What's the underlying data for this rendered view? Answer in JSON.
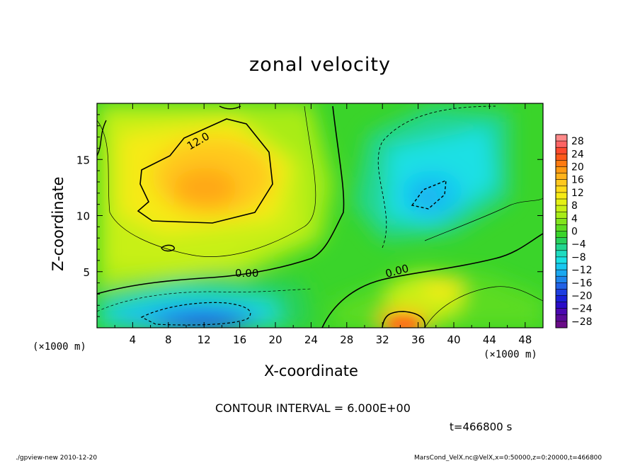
{
  "chart_data": {
    "type": "heatmap",
    "title": "zonal velocity",
    "xlabel": "X-coordinate",
    "ylabel": "Z-coordinate",
    "x_unit": "(×1000 m)",
    "xlim": [
      0,
      50
    ],
    "ylim": [
      0,
      20
    ],
    "x_ticks": [
      4,
      8,
      12,
      16,
      20,
      24,
      28,
      32,
      36,
      40,
      44,
      48
    ],
    "y_ticks": [
      5,
      10,
      15
    ],
    "contour_interval_text": "CONTOUR INTERVAL = 6.000E+00",
    "contour_labels": [
      "12.0",
      "0.00",
      "0.00"
    ],
    "colorbar": {
      "tick_labels": [
        "28",
        "24",
        "20",
        "16",
        "12",
        "8",
        "4",
        "0",
        "−4",
        "−8",
        "−12",
        "−16",
        "−20",
        "−24",
        "−28"
      ],
      "levels": [
        30,
        28,
        26,
        24,
        22,
        20,
        18,
        16,
        14,
        12,
        10,
        8,
        6,
        4,
        2,
        0,
        -2,
        -4,
        -6,
        -8,
        -10,
        -12,
        -14,
        -16,
        -18,
        -20,
        -22,
        -24,
        -26,
        -28,
        -30
      ],
      "colors": [
        "#ff8a8a",
        "#ff6464",
        "#ff4a2e",
        "#ff5a1a",
        "#ff7a10",
        "#ff9a12",
        "#ffb31a",
        "#ffc81e",
        "#ffdb1a",
        "#f6ea16",
        "#e4f014",
        "#c8f016",
        "#a8ec18",
        "#82e41c",
        "#5cdc22",
        "#3ad42a",
        "#28d05c",
        "#22d690",
        "#1edcc0",
        "#1ae0e4",
        "#18c8f0",
        "#1aa8f0",
        "#1e86ec",
        "#2262e6",
        "#1e3ee0",
        "#1a20d8",
        "#2a0cc8",
        "#4a08b0",
        "#5a0a98",
        "#6a0c88"
      ]
    },
    "extrema": [
      {
        "kind": "max",
        "x": 11.5,
        "z": 12,
        "value": 16
      },
      {
        "kind": "min",
        "x": 13,
        "z": 1.2,
        "value": -20
      },
      {
        "kind": "max",
        "x": 35,
        "z": 0.3,
        "value": 22
      },
      {
        "kind": "min",
        "x": 38,
        "z": 11.5,
        "value": -10
      }
    ]
  },
  "time_label": "t=466800 s",
  "footer": {
    "left": "./gpview-new   2010-12-20",
    "right": "MarsCond_VelX.nc@VelX,x=0:50000,z=0:20000,t=466800"
  }
}
